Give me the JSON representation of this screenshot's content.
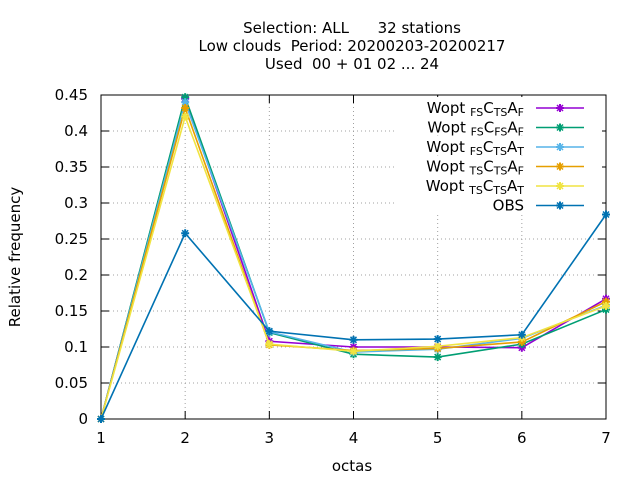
{
  "chart_data": {
    "type": "line",
    "title_lines": [
      "Selection: ALL      32 stations",
      "Low clouds  Period: 20200203-20200217",
      "Used  00 + 01 02 ... 24"
    ],
    "xlabel": "octas",
    "ylabel": "Relative frequency",
    "x": [
      1,
      2,
      3,
      4,
      5,
      6,
      7
    ],
    "xlim": [
      1,
      7
    ],
    "ylim": [
      0,
      0.45
    ],
    "xticks": [
      "1",
      "2",
      "3",
      "4",
      "5",
      "6",
      "7"
    ],
    "yticks": [
      "0",
      "0.05",
      "0.1",
      "0.15",
      "0.2",
      "0.25",
      "0.3",
      "0.35",
      "0.4",
      "0.45"
    ],
    "ytick_values": [
      0,
      0.05,
      0.1,
      0.15,
      0.2,
      0.25,
      0.3,
      0.35,
      0.4,
      0.45
    ],
    "grid": true,
    "legend_position": "top-right",
    "series": [
      {
        "name": "Wopt FS C TS A F",
        "legend": [
          [
            "Wopt ",
            ""
          ],
          [
            "FS",
            "sub"
          ],
          [
            "C",
            ""
          ],
          [
            "TS",
            "sub"
          ],
          [
            "A",
            ""
          ],
          [
            "F",
            "sub"
          ]
        ],
        "color": "#9400d3",
        "marker": "plus",
        "values": [
          0.0,
          0.445,
          0.108,
          0.1,
          0.1,
          0.099,
          0.167
        ]
      },
      {
        "name": "Wopt FS C FS A F",
        "legend": [
          [
            "Wopt ",
            ""
          ],
          [
            "FS",
            "sub"
          ],
          [
            "C",
            ""
          ],
          [
            "FS",
            "sub"
          ],
          [
            "A",
            ""
          ],
          [
            "F",
            "sub"
          ]
        ],
        "color": "#009e73",
        "marker": "plus",
        "values": [
          0.0,
          0.447,
          0.12,
          0.09,
          0.086,
          0.104,
          0.152
        ]
      },
      {
        "name": "Wopt FS C TS A T",
        "legend": [
          [
            "Wopt ",
            ""
          ],
          [
            "FS",
            "sub"
          ],
          [
            "C",
            ""
          ],
          [
            "TS",
            "sub"
          ],
          [
            "A",
            ""
          ],
          [
            "T",
            "sub"
          ]
        ],
        "color": "#56b4e9",
        "marker": "plus",
        "values": [
          0.0,
          0.44,
          0.121,
          0.093,
          0.097,
          0.112,
          0.158
        ]
      },
      {
        "name": "Wopt TS C TS A F",
        "legend": [
          [
            "Wopt ",
            ""
          ],
          [
            "TS",
            "sub"
          ],
          [
            "C",
            ""
          ],
          [
            "TS",
            "sub"
          ],
          [
            "A",
            ""
          ],
          [
            "F",
            "sub"
          ]
        ],
        "color": "#e69f00",
        "marker": "plus",
        "values": [
          0.0,
          0.432,
          0.103,
          0.095,
          0.098,
          0.107,
          0.163
        ]
      },
      {
        "name": "Wopt TS C TS A T",
        "legend": [
          [
            "Wopt ",
            ""
          ],
          [
            "TS",
            "sub"
          ],
          [
            "C",
            ""
          ],
          [
            "TS",
            "sub"
          ],
          [
            "A",
            ""
          ],
          [
            "T",
            "sub"
          ]
        ],
        "color": "#f0e442",
        "marker": "plus",
        "values": [
          0.0,
          0.42,
          0.104,
          0.094,
          0.101,
          0.113,
          0.157
        ]
      },
      {
        "name": "OBS",
        "legend": [
          [
            "OBS",
            ""
          ]
        ],
        "color": "#0072b2",
        "marker": "plus",
        "values": [
          0.0,
          0.258,
          0.122,
          0.11,
          0.111,
          0.117,
          0.284
        ]
      }
    ]
  }
}
